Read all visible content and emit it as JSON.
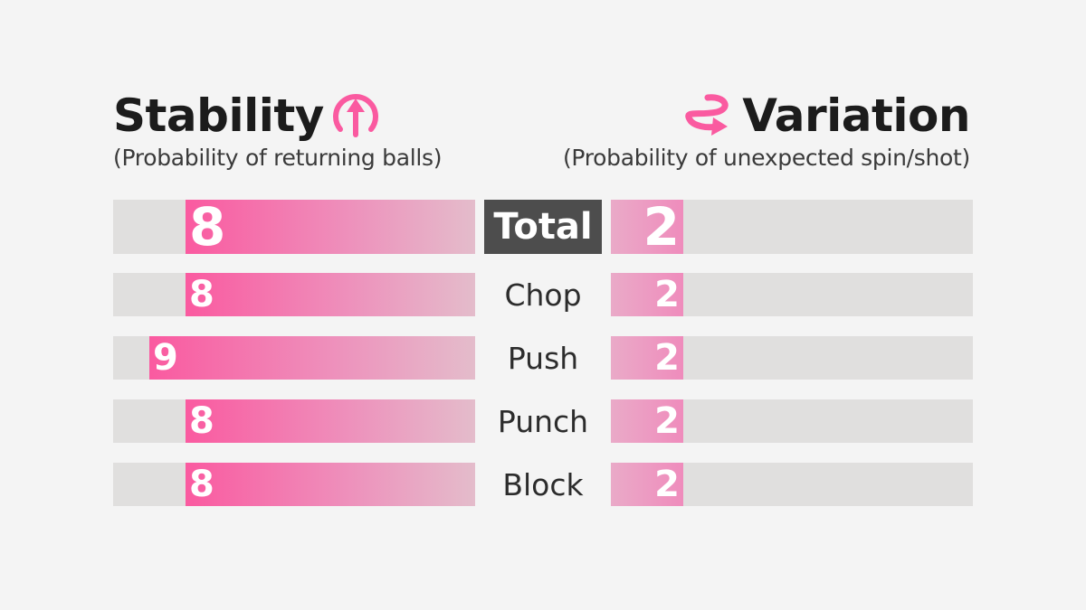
{
  "header": {
    "left_title": "Stability",
    "left_subtitle": "(Probability of returning balls)",
    "right_title": "Variation",
    "right_subtitle": "(Probability of unexpected spin/shot)"
  },
  "colors": {
    "accent_pink": "#fa5aa0",
    "track_gray": "#e0dfde",
    "total_label_bg": "#4d4d4d",
    "background": "#f4f4f4"
  },
  "icons": {
    "left": "up-arrow-circle-icon",
    "right": "swirl-arrow-icon"
  },
  "chart_data": {
    "type": "bar",
    "categories": [
      "Total",
      "Chop",
      "Push",
      "Punch",
      "Block"
    ],
    "series": [
      {
        "name": "Stability",
        "values": [
          8,
          8,
          9,
          8,
          8
        ]
      },
      {
        "name": "Variation",
        "values": [
          2,
          2,
          2,
          2,
          2
        ]
      }
    ],
    "xlim": [
      0,
      10
    ],
    "legend": "none"
  }
}
